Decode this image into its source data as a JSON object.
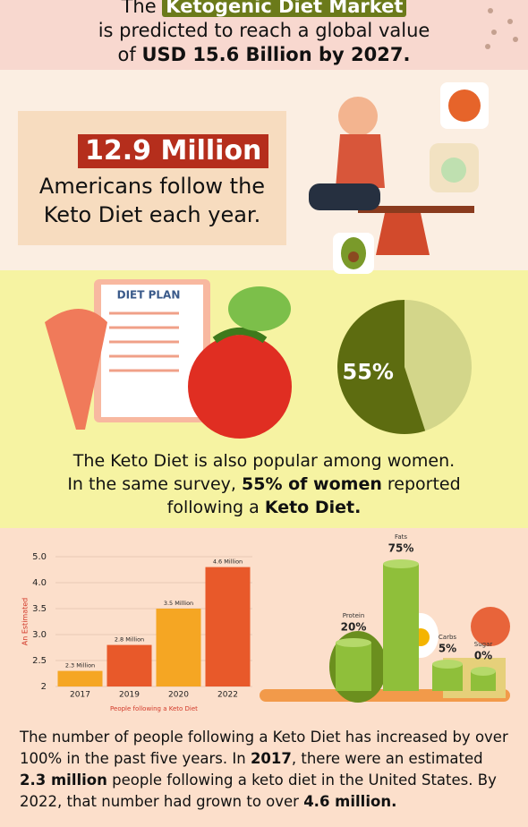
{
  "header": {
    "lines": [
      [
        {
          "text": "The ",
          "bold": false
        },
        {
          "text": "Ketogenic Diet Market",
          "bold": true,
          "highlight": "#6b7a1a"
        }
      ],
      [
        {
          "text": "is predicted to reach a global value",
          "bold": false
        }
      ],
      [
        {
          "text": "of ",
          "bold": false
        },
        {
          "text": "USD 15.6 Billion by 2027.",
          "bold": true
        }
      ]
    ]
  },
  "stat": {
    "badge": "12.9 Million",
    "lines": [
      "Americans follow the",
      "Keto Diet each year."
    ]
  },
  "illustration": {
    "plan_title": "DIET PLAN"
  },
  "women": {
    "lines": [
      [
        {
          "text": "The Keto Diet is also popular among women.",
          "bold": false
        }
      ],
      [
        {
          "text": "In the same survey, ",
          "bold": false
        },
        {
          "text": "55% of women",
          "bold": true
        },
        {
          "text": " reported",
          "bold": false
        }
      ],
      [
        {
          "text": "following a ",
          "bold": false
        },
        {
          "text": "Keto Diet.",
          "bold": true
        }
      ]
    ]
  },
  "chart_data": [
    {
      "type": "pie",
      "values": [
        55,
        45
      ],
      "value_labels": [
        "55%",
        null
      ],
      "colors": [
        "#5d6c10",
        "#d3d68a"
      ]
    },
    {
      "type": "bar",
      "categories": [
        "2017",
        "2019",
        "2020",
        "2022"
      ],
      "values": [
        2.3,
        2.8,
        3.5,
        4.6
      ],
      "value_labels": [
        "2.3 Million",
        "2.8 Million",
        "3.5 Million",
        "4.6 Million"
      ],
      "colors": [
        "#f5a623",
        "#e8592a",
        "#f5a623",
        "#e8592a"
      ],
      "ylim": [
        2,
        5
      ],
      "yticks": [
        2,
        {
          "value": 2.5,
          "label": "2.5"
        },
        {
          "value": 3,
          "label": "3.0"
        },
        {
          "value": 3.5,
          "label": "3.5"
        },
        {
          "value": 4,
          "label": "4.0"
        },
        {
          "value": 5,
          "label": "5.0"
        }
      ],
      "y_label": "An Estimated",
      "x_label": "People following a Keto Diet"
    },
    {
      "type": "cylinder",
      "categories": [
        "Protein",
        "Fats",
        "Carbs",
        "Sugar"
      ],
      "values": [
        20,
        75,
        5,
        0
      ],
      "value_labels": [
        "20%",
        "75%",
        "5%",
        "0%"
      ],
      "color": "#8fbf3a"
    }
  ],
  "footer": {
    "segments": [
      {
        "text": "The number of people following a Keto Diet has increased by over 100% in the past five years. In ",
        "bold": false
      },
      {
        "text": "2017",
        "bold": true
      },
      {
        "text": ", there were an estimated ",
        "bold": false
      },
      {
        "text": "2.3 million",
        "bold": true
      },
      {
        "text": " people following a keto diet in the United States. By 2022, that number had grown to over ",
        "bold": false
      },
      {
        "text": "4.6 million.",
        "bold": true
      }
    ]
  }
}
